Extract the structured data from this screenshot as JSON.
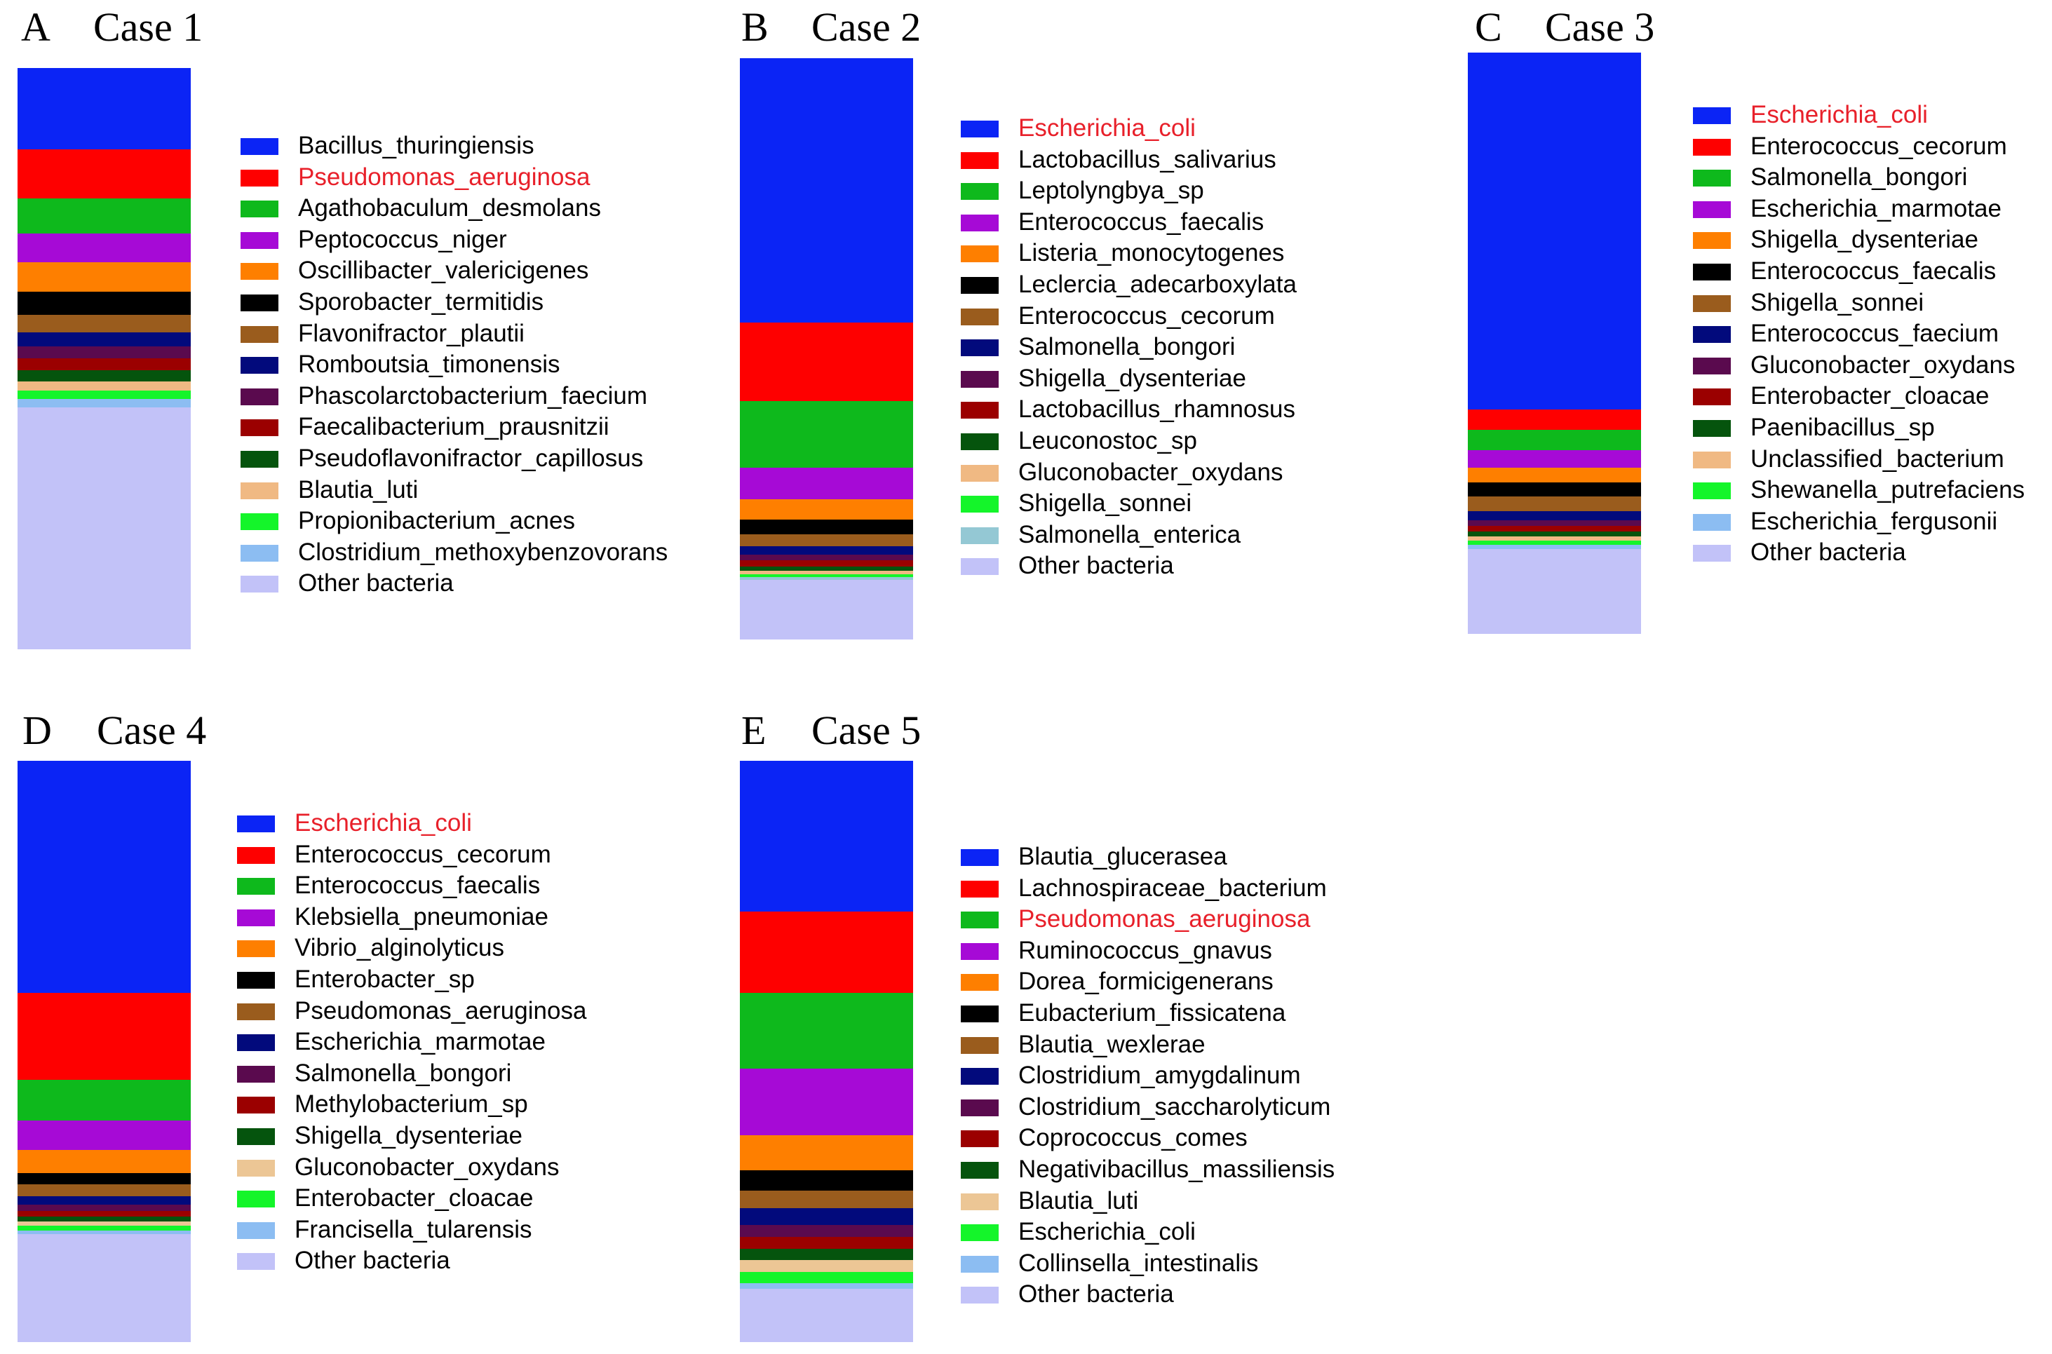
{
  "chart_data": [
    {
      "type": "stacked-bar",
      "panel": "A",
      "title": "Case 1",
      "ylim": [
        0,
        100
      ],
      "series": [
        {
          "name": "Bacillus_thuringiensis",
          "value": 14.0,
          "color": "#0b24f5",
          "highlight": false
        },
        {
          "name": "Pseudomonas_aeruginosa",
          "value": 8.5,
          "color": "#fe0000",
          "highlight": true
        },
        {
          "name": "Agathobaculum_desmolans",
          "value": 6.0,
          "color": "#0eb91c",
          "highlight": false
        },
        {
          "name": "Peptococcus_niger",
          "value": 5.0,
          "color": "#a60ad6",
          "highlight": false
        },
        {
          "name": "Oscillibacter_valericigenes",
          "value": 5.0,
          "color": "#fe7f00",
          "highlight": false
        },
        {
          "name": "Sporobacter_termitidis",
          "value": 4.0,
          "color": "#000000",
          "highlight": false
        },
        {
          "name": "Flavonifractor_plautii",
          "value": 3.0,
          "color": "#9a5c1d",
          "highlight": false
        },
        {
          "name": "Romboutsia_timonensis",
          "value": 2.5,
          "color": "#020a7c",
          "highlight": false
        },
        {
          "name": "Phascolarctobacterium_faecium",
          "value": 2.0,
          "color": "#5a0a4e",
          "highlight": false
        },
        {
          "name": "Faecalibacterium_prausnitzii",
          "value": 2.0,
          "color": "#9b0000",
          "highlight": false
        },
        {
          "name": "Pseudoflavonifractor_capillosus",
          "value": 2.0,
          "color": "#05540d",
          "highlight": false
        },
        {
          "name": "Blautia_luti",
          "value": 1.5,
          "color": "#f0b983",
          "highlight": false
        },
        {
          "name": "Propionibacterium_acnes",
          "value": 1.5,
          "color": "#14f52a",
          "highlight": false
        },
        {
          "name": "Clostridium_methoxybenzovorans",
          "value": 1.5,
          "color": "#8cbdf2",
          "highlight": false
        },
        {
          "name": "Other bacteria",
          "value": 41.5,
          "color": "#c2c2f8",
          "highlight": false
        }
      ]
    },
    {
      "type": "stacked-bar",
      "panel": "B",
      "title": "Case 2",
      "ylim": [
        0,
        100
      ],
      "series": [
        {
          "name": "Escherichia_coli",
          "value": 45.5,
          "color": "#0b24f5",
          "highlight": true
        },
        {
          "name": "Lactobacillus_salivarius",
          "value": 13.5,
          "color": "#fe0000",
          "highlight": false
        },
        {
          "name": "Leptolyngbya_sp",
          "value": 11.5,
          "color": "#0eb91c",
          "highlight": false
        },
        {
          "name": "Enterococcus_faecalis",
          "value": 5.5,
          "color": "#a60ad6",
          "highlight": false
        },
        {
          "name": "Listeria_monocytogenes",
          "value": 3.5,
          "color": "#fe7f00",
          "highlight": false
        },
        {
          "name": "Leclercia_adecarboxylata",
          "value": 2.5,
          "color": "#000000",
          "highlight": false
        },
        {
          "name": "Enterococcus_cecorum",
          "value": 2.0,
          "color": "#9a5c1d",
          "highlight": false
        },
        {
          "name": "Salmonella_bongori",
          "value": 1.5,
          "color": "#020a7c",
          "highlight": false
        },
        {
          "name": "Shigella_dysenteriae",
          "value": 1.0,
          "color": "#5a0a4e",
          "highlight": false
        },
        {
          "name": "Lactobacillus_rhamnosus",
          "value": 1.0,
          "color": "#9b0000",
          "highlight": false
        },
        {
          "name": "Leuconostoc_sp",
          "value": 0.8,
          "color": "#05540d",
          "highlight": false
        },
        {
          "name": "Gluconobacter_oxydans",
          "value": 0.6,
          "color": "#f0b983",
          "highlight": false
        },
        {
          "name": "Shigella_sonnei",
          "value": 0.5,
          "color": "#14f52a",
          "highlight": false
        },
        {
          "name": "Salmonella_enterica",
          "value": 0.5,
          "color": "#94c8d4",
          "highlight": false
        },
        {
          "name": "Other bacteria",
          "value": 10.1,
          "color": "#c2c2f8",
          "highlight": false
        }
      ]
    },
    {
      "type": "stacked-bar",
      "panel": "C",
      "title": "Case 3",
      "ylim": [
        0,
        100
      ],
      "series": [
        {
          "name": "Escherichia_coli",
          "value": 61.5,
          "color": "#0b24f5",
          "highlight": true
        },
        {
          "name": "Enterococcus_cecorum",
          "value": 3.5,
          "color": "#fe0000",
          "highlight": false
        },
        {
          "name": "Salmonella_bongori",
          "value": 3.5,
          "color": "#0eb91c",
          "highlight": false
        },
        {
          "name": "Escherichia_marmotae",
          "value": 3.0,
          "color": "#a60ad6",
          "highlight": false
        },
        {
          "name": "Shigella_dysenteriae",
          "value": 2.5,
          "color": "#fe7f00",
          "highlight": false
        },
        {
          "name": "Enterococcus_faecalis",
          "value": 2.5,
          "color": "#000000",
          "highlight": false
        },
        {
          "name": "Shigella_sonnei",
          "value": 2.5,
          "color": "#9a5c1d",
          "highlight": false
        },
        {
          "name": "Enterococcus_faecium",
          "value": 1.5,
          "color": "#020a7c",
          "highlight": false
        },
        {
          "name": "Gluconobacter_oxydans",
          "value": 1.0,
          "color": "#5a0a4e",
          "highlight": false
        },
        {
          "name": "Enterobacter_cloacae",
          "value": 1.0,
          "color": "#9b0000",
          "highlight": false
        },
        {
          "name": "Paenibacillus_sp",
          "value": 0.8,
          "color": "#05540d",
          "highlight": false
        },
        {
          "name": "Unclassified_bacterium",
          "value": 0.8,
          "color": "#f0b983",
          "highlight": false
        },
        {
          "name": "Shewanella_putrefaciens",
          "value": 0.7,
          "color": "#14f52a",
          "highlight": false
        },
        {
          "name": "Escherichia_fergusonii",
          "value": 0.7,
          "color": "#8cbdf2",
          "highlight": false
        },
        {
          "name": "Other bacteria",
          "value": 14.5,
          "color": "#c2c2f8",
          "highlight": false
        }
      ]
    },
    {
      "type": "stacked-bar",
      "panel": "D",
      "title": "Case 4",
      "ylim": [
        0,
        100
      ],
      "series": [
        {
          "name": "Escherichia_coli",
          "value": 40.0,
          "color": "#0b24f5",
          "highlight": true
        },
        {
          "name": "Enterococcus_cecorum",
          "value": 15.0,
          "color": "#fe0000",
          "highlight": false
        },
        {
          "name": "Enterococcus_faecalis",
          "value": 7.0,
          "color": "#0eb91c",
          "highlight": false
        },
        {
          "name": "Klebsiella_pneumoniae",
          "value": 5.0,
          "color": "#a60ad6",
          "highlight": false
        },
        {
          "name": "Vibrio_alginolyticus",
          "value": 4.0,
          "color": "#fe7f00",
          "highlight": false
        },
        {
          "name": "Enterobacter_sp",
          "value": 2.0,
          "color": "#000000",
          "highlight": false
        },
        {
          "name": "Pseudomonas_aeruginosa",
          "value": 2.0,
          "color": "#9a5c1d",
          "highlight": false
        },
        {
          "name": "Escherichia_marmotae",
          "value": 1.5,
          "color": "#020a7c",
          "highlight": false
        },
        {
          "name": "Salmonella_bongori",
          "value": 1.0,
          "color": "#5a0a4e",
          "highlight": false
        },
        {
          "name": "Methylobacterium_sp",
          "value": 1.0,
          "color": "#9b0000",
          "highlight": false
        },
        {
          "name": "Shigella_dysenteriae",
          "value": 0.8,
          "color": "#05540d",
          "highlight": false
        },
        {
          "name": "Gluconobacter_oxydans",
          "value": 0.8,
          "color": "#ecc695",
          "highlight": false
        },
        {
          "name": "Enterobacter_cloacae",
          "value": 0.8,
          "color": "#14f52a",
          "highlight": false
        },
        {
          "name": "Francisella_tularensis",
          "value": 0.6,
          "color": "#8cbdf2",
          "highlight": false
        },
        {
          "name": "Other bacteria",
          "value": 18.5,
          "color": "#c2c2f8",
          "highlight": false
        }
      ]
    },
    {
      "type": "stacked-bar",
      "panel": "E",
      "title": "Case 5",
      "ylim": [
        0,
        100
      ],
      "series": [
        {
          "name": "Blautia_glucerasea",
          "value": 26.0,
          "color": "#0b24f5",
          "highlight": false
        },
        {
          "name": "Lachnospiraceae_bacterium",
          "value": 14.0,
          "color": "#fe0000",
          "highlight": false
        },
        {
          "name": "Pseudomonas_aeruginosa",
          "value": 13.0,
          "color": "#0eb91c",
          "highlight": true
        },
        {
          "name": "Ruminococcus_gnavus",
          "value": 11.5,
          "color": "#a60ad6",
          "highlight": false
        },
        {
          "name": "Dorea_formicigenerans",
          "value": 6.0,
          "color": "#fe7f00",
          "highlight": false
        },
        {
          "name": "Eubacterium_fissicatena",
          "value": 3.5,
          "color": "#000000",
          "highlight": false
        },
        {
          "name": "Blautia_wexlerae",
          "value": 3.0,
          "color": "#9a5c1d",
          "highlight": false
        },
        {
          "name": "Clostridium_amygdalinum",
          "value": 3.0,
          "color": "#020a7c",
          "highlight": false
        },
        {
          "name": "Clostridium_saccharolyticum",
          "value": 2.0,
          "color": "#5a0a4e",
          "highlight": false
        },
        {
          "name": "Coprococcus_comes",
          "value": 2.0,
          "color": "#9b0000",
          "highlight": false
        },
        {
          "name": "Negativibacillus_massiliensis",
          "value": 2.0,
          "color": "#05540d",
          "highlight": false
        },
        {
          "name": "Blautia_luti",
          "value": 2.0,
          "color": "#ecc695",
          "highlight": false
        },
        {
          "name": "Escherichia_coli",
          "value": 2.0,
          "color": "#14f52a",
          "highlight": false
        },
        {
          "name": "Collinsella_intestinalis",
          "value": 1.0,
          "color": "#8cbdf2",
          "highlight": false
        },
        {
          "name": "Other bacteria",
          "value": 9.0,
          "color": "#c2c2f8",
          "highlight": false
        }
      ]
    }
  ],
  "style": {
    "highlight_text_color": "#e8202a",
    "text_color": "#000000"
  }
}
